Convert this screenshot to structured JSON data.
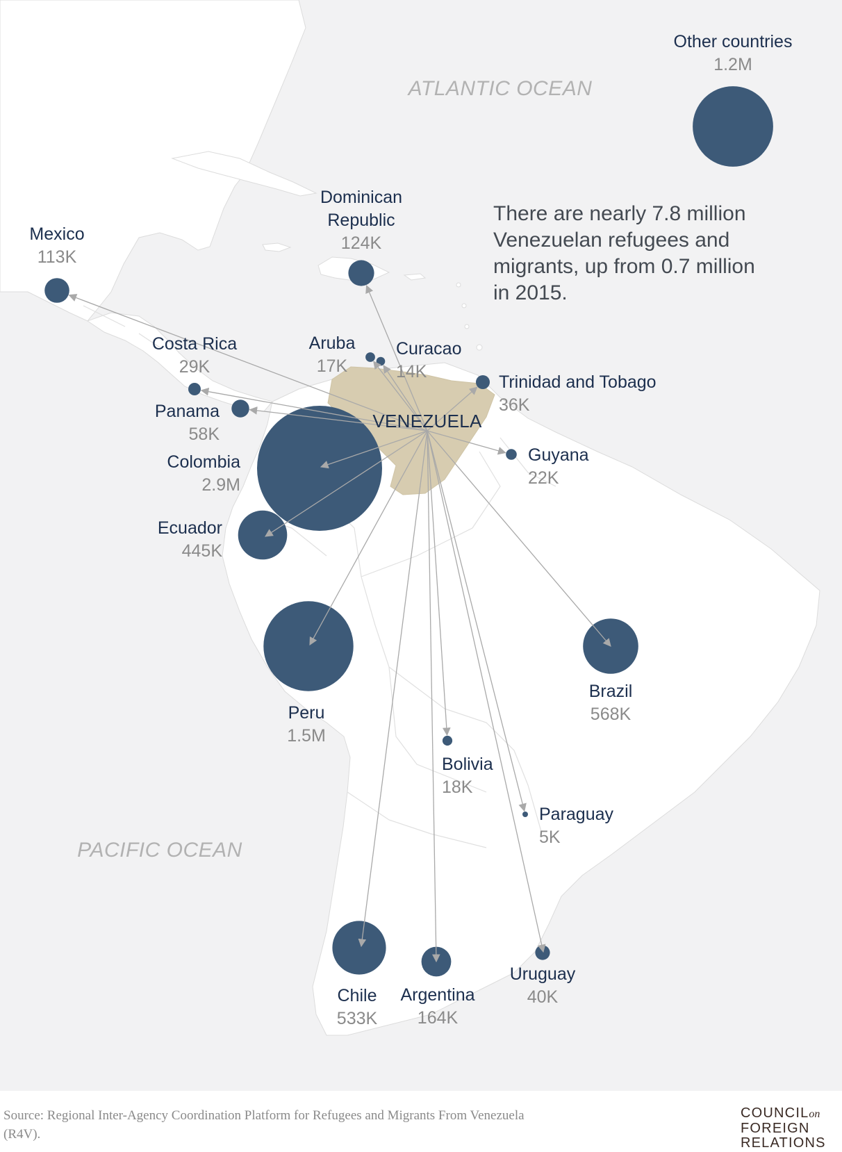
{
  "map": {
    "oceans": [
      {
        "id": "atlantic",
        "label": "ATLANTIC OCEAN"
      },
      {
        "id": "pacific",
        "label": "PACIFIC OCEAN"
      }
    ],
    "origin": {
      "label": "VENEZUELA"
    },
    "summary_lines": [
      "There are nearly 7.8 million",
      "Venezuelan refugees and",
      "migrants, up from 0.7 million",
      "in 2015."
    ],
    "destinations": [
      {
        "id": "mexico",
        "name": [
          "Mexico"
        ],
        "value": "113K",
        "count_k": 113
      },
      {
        "id": "dominican-republic",
        "name": [
          "Dominican",
          "Republic"
        ],
        "value": "124K",
        "count_k": 124
      },
      {
        "id": "costa-rica",
        "name": [
          "Costa Rica"
        ],
        "value": "29K",
        "count_k": 29
      },
      {
        "id": "aruba",
        "name": [
          "Aruba"
        ],
        "value": "17K",
        "count_k": 17
      },
      {
        "id": "curacao",
        "name": [
          "Curacao"
        ],
        "value": "14K",
        "count_k": 14
      },
      {
        "id": "trinidad-and-tobago",
        "name": [
          "Trinidad and Tobago"
        ],
        "value": "36K",
        "count_k": 36
      },
      {
        "id": "panama",
        "name": [
          "Panama"
        ],
        "value": "58K",
        "count_k": 58
      },
      {
        "id": "colombia",
        "name": [
          "Colombia"
        ],
        "value": "2.9M",
        "count_k": 2900
      },
      {
        "id": "guyana",
        "name": [
          "Guyana"
        ],
        "value": "22K",
        "count_k": 22
      },
      {
        "id": "ecuador",
        "name": [
          "Ecuador"
        ],
        "value": "445K",
        "count_k": 445
      },
      {
        "id": "peru",
        "name": [
          "Peru"
        ],
        "value": "1.5M",
        "count_k": 1500
      },
      {
        "id": "brazil",
        "name": [
          "Brazil"
        ],
        "value": "568K",
        "count_k": 568
      },
      {
        "id": "bolivia",
        "name": [
          "Bolivia"
        ],
        "value": "18K",
        "count_k": 18
      },
      {
        "id": "paraguay",
        "name": [
          "Paraguay"
        ],
        "value": "5K",
        "count_k": 5
      },
      {
        "id": "chile",
        "name": [
          "Chile"
        ],
        "value": "533K",
        "count_k": 533
      },
      {
        "id": "argentina",
        "name": [
          "Argentina"
        ],
        "value": "164K",
        "count_k": 164
      },
      {
        "id": "uruguay",
        "name": [
          "Uruguay"
        ],
        "value": "40K",
        "count_k": 40
      },
      {
        "id": "other-countries",
        "name": [
          "Other countries"
        ],
        "value": "1.2M",
        "count_k": 1200
      }
    ],
    "colors": {
      "ocean": "#f2f2f3",
      "land": "#ffffff",
      "origin_land": "#d7ccb0",
      "bubble": "#3d5a78",
      "arrow": "#a9a9a9",
      "name_text": "#1c2f4e",
      "value_text": "#8a8a8a"
    }
  },
  "footer": {
    "source": "Source:  Regional Inter-Agency Coordination Platform for Refugees and Migrants From Venezuela (R4V).",
    "logo_lines": [
      "COUNCIL",
      "on",
      "FOREIGN",
      "RELATIONS"
    ]
  }
}
